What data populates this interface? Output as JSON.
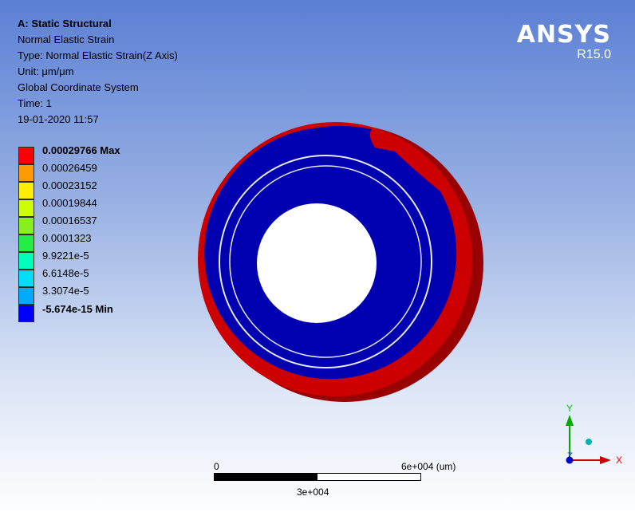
{
  "info": {
    "title": "A: Static Structural",
    "result_name": "Normal Elastic Strain",
    "type": "Type: Normal Elastic Strain(Z Axis)",
    "unit": "Unit: μm/μm",
    "coordinate_system": "Global Coordinate System",
    "time": "Time: 1",
    "timestamp": "19-01-2020 11:57"
  },
  "brand": {
    "name": "ANSYS",
    "version": "R15.0"
  },
  "legend": {
    "bands": [
      {
        "label": "0.00029766 Max",
        "color": "#ff0000",
        "bold": true
      },
      {
        "label": "0.00026459",
        "color": "#ff9900",
        "bold": false
      },
      {
        "label": "0.00023152",
        "color": "#ffee00",
        "bold": false
      },
      {
        "label": "0.00019844",
        "color": "#ccff00",
        "bold": false
      },
      {
        "label": "0.00016537",
        "color": "#88ee22",
        "bold": false
      },
      {
        "label": "0.0001323",
        "color": "#22ee44",
        "bold": false
      },
      {
        "label": "9.9221e-5",
        "color": "#00ffbb",
        "bold": false
      },
      {
        "label": "6.6148e-5",
        "color": "#00ddff",
        "bold": false
      },
      {
        "label": "3.3074e-5",
        "color": "#00aaff",
        "bold": false
      }
    ],
    "min_label": "-5.674e-15 Min",
    "min_color": "#0000ff"
  },
  "scale_bar": {
    "zero": "0",
    "max_label": "6e+004 (um)",
    "mid_label": "3e+004"
  },
  "triad": {
    "x_label": "X",
    "y_label": "Y",
    "z_label": "Z"
  },
  "model_colors": {
    "outer": "#cc0000",
    "outer_dark": "#990000",
    "inner": "#0000b0",
    "ring_line": "#e6e6ff"
  }
}
